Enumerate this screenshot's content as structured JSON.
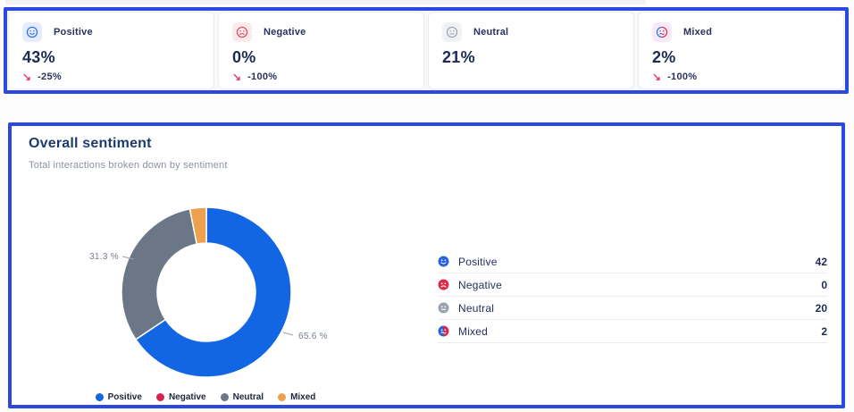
{
  "colors": {
    "annotation_border": "#2b49df",
    "positive_blue": "#1266e3",
    "negative_red": "#d6244a",
    "neutral_gray": "#6b7686",
    "mixed_orange": "#eda14f",
    "trend_pink": "#ee3d74",
    "navy_text": "#1d2b52"
  },
  "icons": {
    "trend_down": "↘",
    "positive": "smiling-face-icon",
    "negative": "frowning-face-icon",
    "neutral": "neutral-face-icon",
    "mixed": "confused-face-icon"
  },
  "stat_cards": [
    {
      "label": "Positive",
      "value": "43%",
      "change": "-25%"
    },
    {
      "label": "Negative",
      "value": "0%",
      "change": "-100%"
    },
    {
      "label": "Neutral",
      "value": "21%",
      "change": null
    },
    {
      "label": "Mixed",
      "value": "2%",
      "change": "-100%"
    }
  ],
  "overall_card": {
    "title": "Overall sentiment",
    "subtitle": "Total interactions broken down by sentiment"
  },
  "chart_data": {
    "type": "pie",
    "donut": true,
    "title": "Overall sentiment",
    "subtitle": "Total interactions broken down by sentiment",
    "categories": [
      "Positive",
      "Negative",
      "Neutral",
      "Mixed"
    ],
    "values": [
      42,
      0,
      20,
      2
    ],
    "percentages": [
      65.6,
      0,
      31.3,
      3.1
    ],
    "colors": [
      "#1266e3",
      "#d6244a",
      "#6b7686",
      "#eda14f"
    ],
    "legend_position": "bottom",
    "visible_percent_labels": {
      "positive": "65.6 %",
      "neutral": "31.3 %"
    }
  }
}
